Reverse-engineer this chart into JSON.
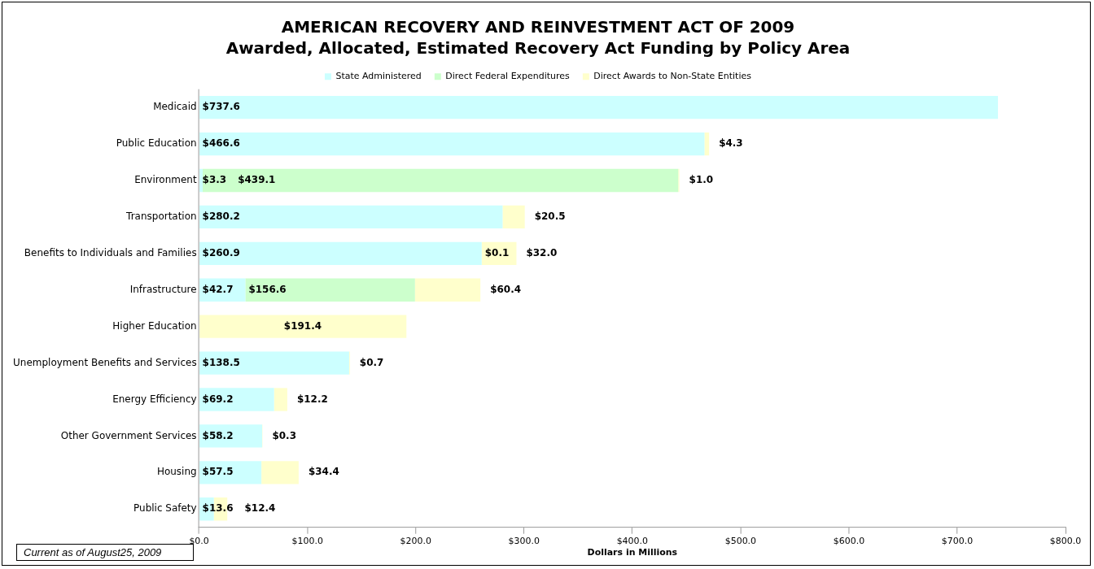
{
  "chart_data": {
    "type": "bar",
    "orientation": "horizontal",
    "stacked": true,
    "title": "AMERICAN RECOVERY AND REINVESTMENT ACT OF 2009",
    "subtitle": "Awarded, Allocated, Estimated Recovery Act Funding by Policy Area",
    "xlabel": "Dollars in Millions",
    "categories": [
      "Medicaid",
      "Public Education",
      "Environment",
      "Transportation",
      "Benefits to Individuals and Families",
      "Infrastructure",
      "Higher Education",
      "Unemployment Benefits and Services",
      "Energy Efficiency",
      "Other Government Services",
      "Housing",
      "Public Safety"
    ],
    "series": [
      {
        "name": "State Administered",
        "color": "#ccffff",
        "values": [
          737.6,
          466.6,
          3.3,
          280.2,
          260.9,
          42.7,
          null,
          138.5,
          69.2,
          58.2,
          57.5,
          13.6
        ],
        "value_labels": [
          "$737.6",
          "$466.6",
          "$3.3",
          "$280.2",
          "$260.9",
          "$42.7",
          null,
          "$138.5",
          "$69.2",
          "$58.2",
          "$57.5",
          "$13.6"
        ]
      },
      {
        "name": "Direct Federal Expenditures",
        "color": "#ccffcc",
        "values": [
          null,
          null,
          439.1,
          null,
          0.1,
          156.6,
          null,
          null,
          null,
          null,
          null,
          null
        ],
        "value_labels": [
          null,
          null,
          "$439.1",
          null,
          "$0.1",
          "$156.6",
          null,
          null,
          null,
          null,
          null,
          null
        ]
      },
      {
        "name": "Direct Awards to Non-State Entities",
        "color": "#ffffcc",
        "values": [
          null,
          4.3,
          1.0,
          20.5,
          32.0,
          60.4,
          191.4,
          0.7,
          12.2,
          0.3,
          34.4,
          12.4
        ],
        "value_labels": [
          null,
          "$4.3",
          "$1.0",
          "$20.5",
          "$32.0",
          "$60.4",
          "$191.4",
          "$0.7",
          "$12.2",
          "$0.3",
          "$34.4",
          "$12.4"
        ]
      }
    ],
    "xlim": [
      0,
      800
    ],
    "xticks": [
      {
        "value": 0,
        "label": "$0.0"
      },
      {
        "value": 100,
        "label": "$100.0"
      },
      {
        "value": 200,
        "label": "$200.0"
      },
      {
        "value": 300,
        "label": "$300.0"
      },
      {
        "value": 400,
        "label": "$400.0"
      },
      {
        "value": 500,
        "label": "$500.0"
      },
      {
        "value": 600,
        "label": "$600.0"
      },
      {
        "value": 700,
        "label": "$700.0"
      },
      {
        "value": 800,
        "label": "$800.0"
      }
    ],
    "grid": false,
    "legend": "top",
    "annotations": [
      "Current as of August25, 2009"
    ]
  }
}
